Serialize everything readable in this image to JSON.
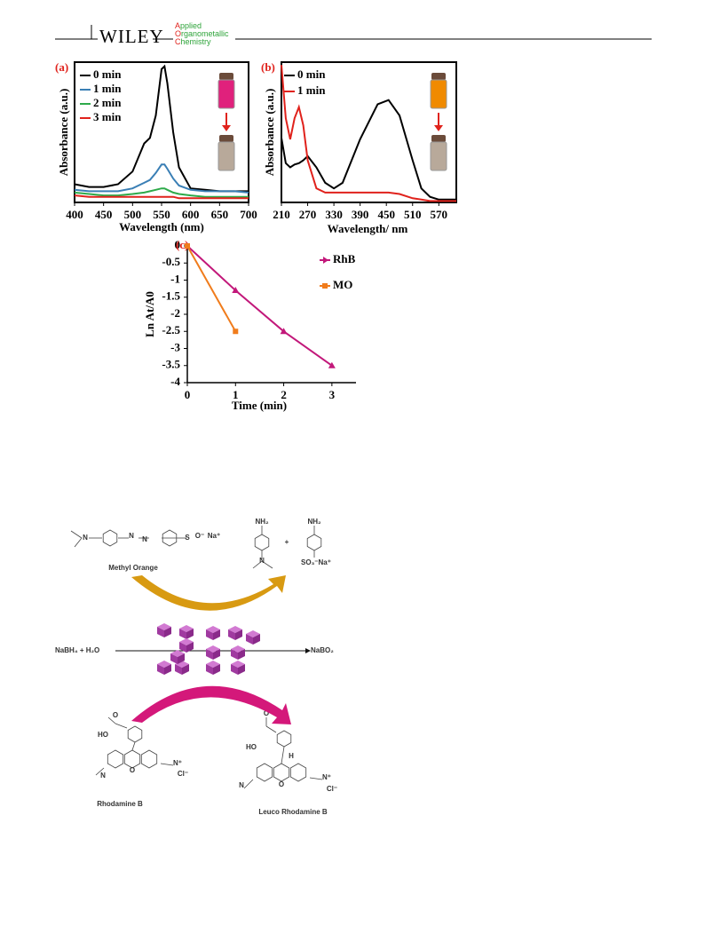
{
  "header": {
    "publisher": "WILEY",
    "journal": [
      "Applied",
      "Organometallic",
      "Chemistry"
    ]
  },
  "chart_data": [
    {
      "type": "line",
      "panel_label": "(a)",
      "xlabel": "Wavelength (nm)",
      "ylabel": "Absorbance (a.u.)",
      "x": [
        400,
        425,
        450,
        475,
        500,
        520,
        530,
        540,
        550,
        555,
        560,
        570,
        580,
        600,
        625,
        650,
        675,
        700
      ],
      "xlim": [
        400,
        700
      ],
      "xticks": [
        400,
        450,
        500,
        550,
        600,
        650,
        700
      ],
      "ylim": [
        0,
        1
      ],
      "series": [
        {
          "name": "0 min",
          "color": "#000000",
          "values": [
            0.13,
            0.11,
            0.11,
            0.13,
            0.22,
            0.42,
            0.46,
            0.62,
            0.95,
            0.97,
            0.85,
            0.5,
            0.25,
            0.1,
            0.09,
            0.08,
            0.08,
            0.08
          ]
        },
        {
          "name": "1 min",
          "color": "#3a7fb5",
          "values": [
            0.09,
            0.08,
            0.08,
            0.08,
            0.1,
            0.14,
            0.16,
            0.21,
            0.27,
            0.27,
            0.24,
            0.17,
            0.12,
            0.09,
            0.08,
            0.08,
            0.08,
            0.07
          ]
        },
        {
          "name": "2 min",
          "color": "#2eaa4a",
          "values": [
            0.07,
            0.06,
            0.05,
            0.05,
            0.06,
            0.07,
            0.08,
            0.09,
            0.1,
            0.1,
            0.09,
            0.07,
            0.06,
            0.05,
            0.04,
            0.04,
            0.04,
            0.04
          ]
        },
        {
          "name": "3 min",
          "color": "#e0221c",
          "values": [
            0.05,
            0.04,
            0.04,
            0.04,
            0.04,
            0.04,
            0.04,
            0.04,
            0.04,
            0.04,
            0.04,
            0.04,
            0.03,
            0.03,
            0.03,
            0.03,
            0.03,
            0.03
          ]
        }
      ]
    },
    {
      "type": "line",
      "panel_label": "(b)",
      "xlabel": "Wavelength/ nm",
      "ylabel": "Absorbance (a.u.)",
      "x": [
        210,
        220,
        230,
        240,
        250,
        260,
        270,
        290,
        310,
        330,
        350,
        390,
        430,
        455,
        480,
        510,
        530,
        550,
        570,
        590,
        610
      ],
      "xlim": [
        210,
        610
      ],
      "xticks": [
        210,
        270,
        330,
        390,
        450,
        510,
        570
      ],
      "ylim": [
        0,
        1
      ],
      "series": [
        {
          "name": "0 min",
          "color": "#000000",
          "values": [
            0.46,
            0.28,
            0.25,
            0.27,
            0.28,
            0.3,
            0.33,
            0.25,
            0.14,
            0.1,
            0.14,
            0.45,
            0.7,
            0.73,
            0.62,
            0.3,
            0.1,
            0.04,
            0.02,
            0.02,
            0.02
          ]
        },
        {
          "name": "1 min",
          "color": "#e0221c",
          "values": [
            0.98,
            0.6,
            0.45,
            0.6,
            0.68,
            0.55,
            0.3,
            0.1,
            0.07,
            0.07,
            0.07,
            0.07,
            0.07,
            0.07,
            0.06,
            0.03,
            0.02,
            0.01,
            0.01,
            0.01,
            0.01
          ]
        }
      ]
    },
    {
      "type": "line",
      "panel_label": "(c)",
      "xlabel": "Time (min)",
      "ylabel": "Ln At/A0",
      "x": [
        0,
        1,
        2,
        3
      ],
      "xlim": [
        0,
        3.5
      ],
      "xticks": [
        0,
        1,
        2,
        3
      ],
      "ylim": [
        -4,
        0
      ],
      "yticks": [
        0,
        -0.5,
        -1,
        -1.5,
        -2,
        -2.5,
        -3,
        -3.5,
        -4
      ],
      "series": [
        {
          "name": "RhB",
          "color": "#c2187a",
          "marker": "triangle",
          "values": [
            0,
            -1.3,
            -2.5,
            -3.5
          ]
        },
        {
          "name": "MO",
          "color": "#f07c1c",
          "marker": "square",
          "values": [
            0,
            -2.5,
            null,
            null
          ]
        }
      ]
    }
  ],
  "scheme": {
    "methyl_orange": "Methyl Orange",
    "reactants": "NaBH₄ + H₂O",
    "product": "NaBO₂",
    "rhodamine_b": "Rhodamine B",
    "leuco_rhodamine_b": "Leuco Rhodamine B",
    "atoms": [
      "N",
      "N",
      "N",
      "S",
      "O⁻",
      "Na⁺",
      "NH₂",
      "N",
      "+",
      "NH₂",
      "SO₃⁻Na⁺",
      "HO",
      "O",
      "N",
      "O",
      "N⁺",
      "Cl⁻",
      "HO",
      "O",
      "N",
      "O",
      "N⁺",
      "Cl⁻",
      "H"
    ]
  }
}
